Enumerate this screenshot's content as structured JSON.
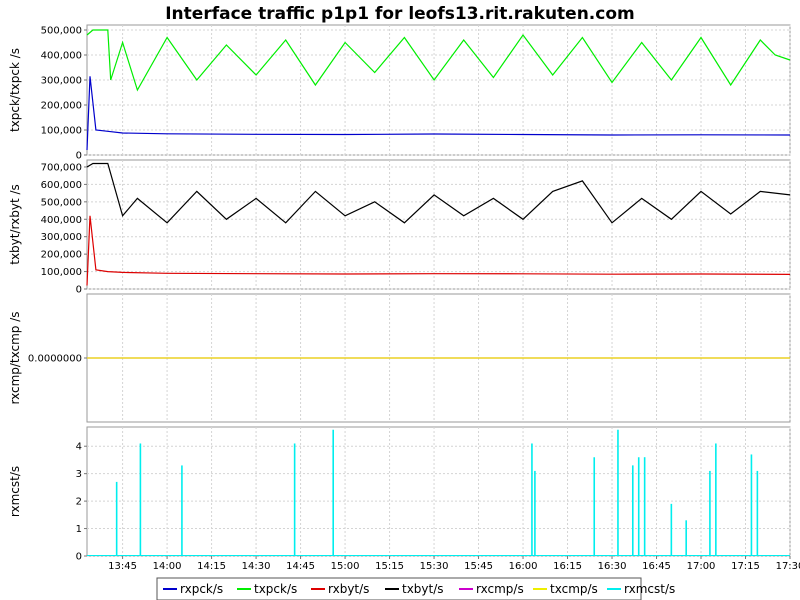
{
  "chart_data": {
    "type": "line",
    "title": "Interface traffic p1p1 for leofs13.rit.rakuten.com",
    "x_ticks": [
      "13:45",
      "14:00",
      "14:15",
      "14:30",
      "14:45",
      "15:00",
      "15:15",
      "15:30",
      "15:45",
      "16:00",
      "16:15",
      "16:30",
      "16:45",
      "17:00",
      "17:15",
      "17:30"
    ],
    "x_range": [
      "13:33",
      "17:30"
    ],
    "grid": true,
    "legend_position": "bottom",
    "legend": [
      {
        "name": "rxpck/s",
        "color": "#0000cc"
      },
      {
        "name": "txpck/s",
        "color": "#00ee00"
      },
      {
        "name": "rxbyt/s",
        "color": "#dd0000"
      },
      {
        "name": "txbyt/s",
        "color": "#000000"
      },
      {
        "name": "rxcmp/s",
        "color": "#cc00cc"
      },
      {
        "name": "txcmp/s",
        "color": "#eeee00"
      },
      {
        "name": "rxmcst/s",
        "color": "#00eeee"
      }
    ],
    "panels": [
      {
        "ylabel": "txpck/txpck /s",
        "ylim": [
          0,
          520000
        ],
        "yticks": [
          0,
          100000,
          200000,
          300000,
          400000,
          500000
        ],
        "ytick_labels": [
          "0",
          "100,000",
          "200,000",
          "300,000",
          "400,000",
          "500,000"
        ],
        "series": [
          {
            "name": "txpck/s",
            "color": "#00ee00",
            "x": [
              "13:33",
              "13:35",
              "13:40",
              "13:41",
              "13:45",
              "13:50",
              "14:00",
              "14:10",
              "14:20",
              "14:30",
              "14:40",
              "14:50",
              "15:00",
              "15:10",
              "15:20",
              "15:30",
              "15:40",
              "15:50",
              "16:00",
              "16:10",
              "16:20",
              "16:30",
              "16:40",
              "16:50",
              "17:00",
              "17:10",
              "17:20",
              "17:25",
              "17:30"
            ],
            "values": [
              480000,
              500000,
              500000,
              300000,
              450000,
              260000,
              470000,
              300000,
              440000,
              320000,
              460000,
              280000,
              450000,
              330000,
              470000,
              300000,
              460000,
              310000,
              480000,
              320000,
              470000,
              290000,
              450000,
              300000,
              470000,
              280000,
              460000,
              400000,
              380000
            ]
          },
          {
            "name": "rxpck/s",
            "color": "#0000cc",
            "x": [
              "13:33",
              "13:34",
              "13:36",
              "13:40",
              "13:45",
              "14:00",
              "14:30",
              "15:00",
              "15:30",
              "16:00",
              "16:30",
              "17:00",
              "17:30"
            ],
            "values": [
              20000,
              315000,
              100000,
              95000,
              88000,
              85000,
              83000,
              82000,
              84000,
              82000,
              80000,
              81000,
              80000
            ]
          }
        ]
      },
      {
        "ylabel": "txbyt/rxbyt /s",
        "ylim": [
          0,
          740000
        ],
        "yticks": [
          0,
          100000,
          200000,
          300000,
          400000,
          500000,
          600000,
          700000
        ],
        "ytick_labels": [
          "0",
          "100,000",
          "200,000",
          "300,000",
          "400,000",
          "500,000",
          "600,000",
          "700,000"
        ],
        "series": [
          {
            "name": "txbyt/s",
            "color": "#000000",
            "x": [
              "13:33",
              "13:35",
              "13:40",
              "13:45",
              "13:50",
              "14:00",
              "14:10",
              "14:20",
              "14:30",
              "14:40",
              "14:50",
              "15:00",
              "15:10",
              "15:20",
              "15:30",
              "15:40",
              "15:50",
              "16:00",
              "16:10",
              "16:20",
              "16:30",
              "16:40",
              "16:50",
              "17:00",
              "17:10",
              "17:20",
              "17:30"
            ],
            "values": [
              700000,
              720000,
              720000,
              420000,
              520000,
              380000,
              560000,
              400000,
              520000,
              380000,
              560000,
              420000,
              500000,
              380000,
              540000,
              420000,
              520000,
              400000,
              560000,
              620000,
              380000,
              520000,
              400000,
              560000,
              430000,
              560000,
              540000
            ]
          },
          {
            "name": "rxbyt/s",
            "color": "#dd0000",
            "x": [
              "13:33",
              "13:34",
              "13:36",
              "13:40",
              "13:45",
              "14:00",
              "14:30",
              "15:00",
              "15:30",
              "16:00",
              "16:30",
              "17:00",
              "17:30"
            ],
            "values": [
              20000,
              420000,
              110000,
              100000,
              95000,
              90000,
              88000,
              86000,
              88000,
              87000,
              85000,
              86000,
              84000
            ]
          }
        ]
      },
      {
        "ylabel": "rxcmp/txcmp /s",
        "ylim": [
          -1,
          1
        ],
        "yticks": [
          0
        ],
        "ytick_labels": [
          "0.0000000"
        ],
        "series": [
          {
            "name": "rxcmp/s",
            "color": "#cc00cc",
            "x": [
              "13:33",
              "17:30"
            ],
            "values": [
              0,
              0
            ]
          },
          {
            "name": "txcmp/s",
            "color": "#eeee00",
            "x": [
              "13:33",
              "17:30"
            ],
            "values": [
              0,
              0
            ]
          }
        ]
      },
      {
        "ylabel": "rxmcst/s",
        "ylim": [
          0,
          4.7
        ],
        "yticks": [
          0,
          1,
          2,
          3,
          4
        ],
        "ytick_labels": [
          "0",
          "1",
          "2",
          "3",
          "4"
        ],
        "series": [
          {
            "name": "rxmcst/s",
            "color": "#00eeee",
            "x": [
              "13:43",
              "13:51",
              "14:05",
              "14:43",
              "14:56",
              "16:03",
              "16:04",
              "16:24",
              "16:32",
              "16:37",
              "16:39",
              "16:41",
              "16:50",
              "16:55",
              "17:03",
              "17:05",
              "17:17",
              "17:19"
            ],
            "values": [
              2.7,
              4.1,
              3.3,
              4.1,
              4.6,
              4.1,
              3.1,
              3.6,
              4.6,
              3.3,
              3.6,
              3.6,
              1.9,
              1.3,
              3.1,
              4.1,
              3.7,
              3.1
            ]
          }
        ]
      }
    ]
  }
}
